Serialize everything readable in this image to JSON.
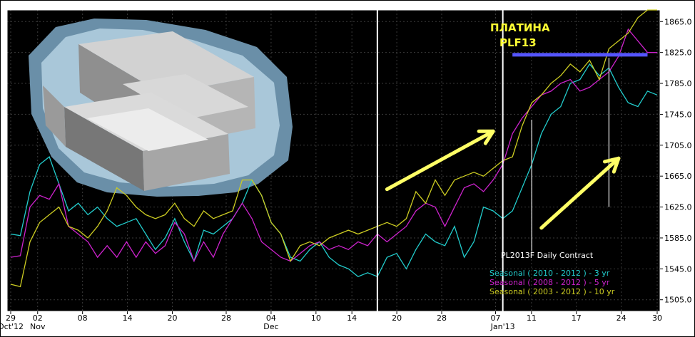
{
  "chart_data": {
    "type": "line",
    "title": "ПЛАТИНА",
    "subtitle": "PLF13",
    "contract_label": "PL2013F Daily Contract",
    "ylim": [
      1490,
      1880
    ],
    "y_ticks": [
      1505.0,
      1545.0,
      1585.0,
      1625.0,
      1665.0,
      1705.0,
      1745.0,
      1785.0,
      1825.0,
      1865.0
    ],
    "y_tick_labels": [
      "1505.0",
      "1545.0",
      "1585.0",
      "1625.0",
      "1665.0",
      "1705.0",
      "1745.0",
      "1785.0",
      "1825.0",
      "1865.0"
    ],
    "x_ticks": [
      "29",
      "02",
      "08",
      "14",
      "20",
      "28",
      "04",
      "10",
      "14",
      "20",
      "28",
      "07",
      "11",
      "17",
      "24",
      "30"
    ],
    "x_month_labels": [
      "Oct'12",
      "Nov",
      "Dec",
      "Jan'13"
    ],
    "grid": true,
    "legend_position": "bottom-right",
    "colors": {
      "background": "#000000",
      "grid": "#3a3a3a",
      "frame": "#ffffff",
      "title": "#ffff33",
      "bar": "#5555ff",
      "arrow": "#ffff66",
      "vline": "#ffffff",
      "thin_vline": "#bbbbbb"
    },
    "series": [
      {
        "name": "Seasonal ( 2010 - 2012 ) - 3 yr",
        "color": "#22cccc",
        "values": [
          1590,
          1588,
          1645,
          1680,
          1690,
          1655,
          1620,
          1630,
          1615,
          1625,
          1610,
          1600,
          1605,
          1610,
          1590,
          1570,
          1585,
          1610,
          1580,
          1555,
          1595,
          1590,
          1600,
          1610,
          1630,
          1660,
          1640,
          1605,
          1590,
          1560,
          1555,
          1570,
          1580,
          1560,
          1550,
          1545,
          1535,
          1540,
          1535,
          1560,
          1565,
          1545,
          1570,
          1590,
          1580,
          1575,
          1600,
          1560,
          1580,
          1625,
          1620,
          1610,
          1620,
          1650,
          1680,
          1720,
          1745,
          1755,
          1785,
          1790,
          1810,
          1795,
          1805,
          1780,
          1760,
          1755,
          1775,
          1770
        ]
      },
      {
        "name": "Seasonal ( 2008 - 2012 ) - 5 yr",
        "color": "#cc22cc",
        "values": [
          1560,
          1562,
          1625,
          1640,
          1635,
          1655,
          1600,
          1590,
          1580,
          1560,
          1575,
          1560,
          1580,
          1560,
          1580,
          1565,
          1575,
          1605,
          1590,
          1555,
          1580,
          1560,
          1590,
          1610,
          1630,
          1610,
          1580,
          1570,
          1560,
          1555,
          1565,
          1575,
          1580,
          1570,
          1575,
          1570,
          1580,
          1575,
          1590,
          1580,
          1590,
          1600,
          1620,
          1630,
          1625,
          1600,
          1625,
          1650,
          1655,
          1645,
          1660,
          1680,
          1720,
          1740,
          1755,
          1770,
          1775,
          1785,
          1790,
          1775,
          1780,
          1790,
          1800,
          1820,
          1855,
          1840,
          1825,
          1825
        ]
      },
      {
        "name": "Seasonal ( 2003 - 2012 ) - 10 yr",
        "color": "#cccc22",
        "values": [
          1525,
          1522,
          1580,
          1605,
          1615,
          1625,
          1600,
          1595,
          1585,
          1600,
          1620,
          1650,
          1640,
          1625,
          1615,
          1610,
          1615,
          1630,
          1610,
          1600,
          1620,
          1610,
          1615,
          1620,
          1660,
          1660,
          1640,
          1605,
          1590,
          1555,
          1575,
          1580,
          1575,
          1585,
          1590,
          1595,
          1590,
          1595,
          1600,
          1605,
          1600,
          1610,
          1645,
          1630,
          1660,
          1640,
          1660,
          1665,
          1670,
          1665,
          1675,
          1685,
          1690,
          1730,
          1760,
          1770,
          1785,
          1795,
          1810,
          1800,
          1815,
          1790,
          1830,
          1840,
          1850,
          1870,
          1880,
          1880
        ]
      }
    ]
  },
  "overlay": {
    "vertical_lines_at_index": [
      38,
      51
    ],
    "thin_lines": [
      {
        "index": 54,
        "from": 1738,
        "to": 1567
      },
      {
        "index": 62,
        "from": 1818,
        "to": 1625
      }
    ],
    "blue_bar": {
      "from_index": 52,
      "to_index": 66,
      "value": 1822
    },
    "arrows": [
      {
        "from_index": 39,
        "from_value": 1648,
        "to_index": 50,
        "to_value": 1723
      },
      {
        "from_index": 55,
        "from_value": 1598,
        "to_index": 63,
        "to_value": 1688
      }
    ]
  }
}
